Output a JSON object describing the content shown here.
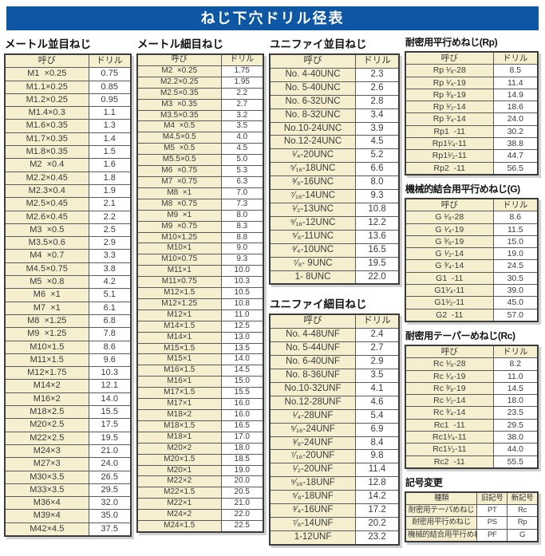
{
  "page_title": "ねじ下穴ドリル径表",
  "colors": {
    "header_bg": "#0d57a4",
    "header_text": "#ffffff",
    "cell_cream": "#f5efcf",
    "cell_white": "#ffffff",
    "table_border": "#3c3c3c"
  },
  "columns": [
    {
      "sections": [
        {
          "key": "metric_coarse",
          "title": "メートル並目ねじ",
          "headers": [
            "呼び",
            "ドリル"
          ],
          "rows": [
            [
              "M1  ×0.25",
              "0.75"
            ],
            [
              "M1.1×0.25",
              "0.85"
            ],
            [
              "M1.2×0.25",
              "0.95"
            ],
            [
              "M1.4×0.3",
              "1.1"
            ],
            [
              "M1.6×0.35",
              "1.3"
            ],
            [
              "M1.7×0.35",
              "1.4"
            ],
            [
              "M1.8×0.35",
              "1.5"
            ],
            [
              "M2  ×0.4",
              "1.6"
            ],
            [
              "M2.2×0.45",
              "1.8"
            ],
            [
              "M2.3×0.4",
              "1.9"
            ],
            [
              "M2.5×0.45",
              "2.1"
            ],
            [
              "M2.6×0.45",
              "2.2"
            ],
            [
              "M3  ×0.5",
              "2.5"
            ],
            [
              "M3.5×0.6",
              "2.9"
            ],
            [
              "M4  ×0.7",
              "3.3"
            ],
            [
              "M4.5×0.75",
              "3.8"
            ],
            [
              "M5  ×0.8",
              "4.2"
            ],
            [
              "M6  ×1",
              "5.1"
            ],
            [
              "M7  ×1",
              "6.1"
            ],
            [
              "M8  ×1.25",
              "6.8"
            ],
            [
              "M9  ×1.25",
              "7.8"
            ],
            [
              "M10×1.5",
              "8.6"
            ],
            [
              "M11×1.5",
              "9.6"
            ],
            [
              "M12×1.75",
              "10.3"
            ],
            [
              "M14×2",
              "12.1"
            ],
            [
              "M16×2",
              "14.0"
            ],
            [
              "M18×2.5",
              "15.5"
            ],
            [
              "M20×2.5",
              "17.5"
            ],
            [
              "M22×2.5",
              "19.5"
            ],
            [
              "M24×3",
              "21.0"
            ],
            [
              "M27×3",
              "24.0"
            ],
            [
              "M30×3.5",
              "26.5"
            ],
            [
              "M33×3.5",
              "29.5"
            ],
            [
              "M36×4",
              "32.0"
            ],
            [
              "M39×4",
              "35.0"
            ],
            [
              "M42×4.5",
              "37.5"
            ]
          ]
        }
      ]
    },
    {
      "sections": [
        {
          "key": "metric_fine",
          "title": "メートル細目ねじ",
          "headers": [
            "呼び",
            "ドリル"
          ],
          "rows": [
            [
              "M2  ×0.25",
              "1.75"
            ],
            [
              "M2.2×0.25",
              "1.95"
            ],
            [
              "M2.5×0.35",
              "2.2"
            ],
            [
              "M3  ×0.35",
              "2.7"
            ],
            [
              "M3.5×0.35",
              "3.2"
            ],
            [
              "M4  ×0.5",
              "3.5"
            ],
            [
              "M4.5×0.5",
              "4.0"
            ],
            [
              "M5  ×0.5",
              "4.5"
            ],
            [
              "M5.5×0.5",
              "5.0"
            ],
            [
              "M6  ×0.75",
              "5.3"
            ],
            [
              "M7  ×0.75",
              "6.3"
            ],
            [
              "M8  ×1",
              "7.0"
            ],
            [
              "M8  ×0.75",
              "7.3"
            ],
            [
              "M9  ×1",
              "8.0"
            ],
            [
              "M9  ×0.75",
              "8.3"
            ],
            [
              "M10×1.25",
              "8.8"
            ],
            [
              "M10×1",
              "9.0"
            ],
            [
              "M10×0.75",
              "9.3"
            ],
            [
              "M11×1",
              "10.0"
            ],
            [
              "M11×0.75",
              "10.3"
            ],
            [
              "M12×1.5",
              "10.5"
            ],
            [
              "M12×1.25",
              "10.8"
            ],
            [
              "M12×1",
              "11.0"
            ],
            [
              "M14×1.5",
              "12.5"
            ],
            [
              "M14×1",
              "13.0"
            ],
            [
              "M15×1.5",
              "13.5"
            ],
            [
              "M15×1",
              "14.0"
            ],
            [
              "M16×1.5",
              "14.5"
            ],
            [
              "M16×1",
              "15.0"
            ],
            [
              "M17×1.5",
              "15.5"
            ],
            [
              "M17×1",
              "16.0"
            ],
            [
              "M18×2",
              "16.0"
            ],
            [
              "M18×1.5",
              "16.5"
            ],
            [
              "M18×1",
              "17.0"
            ],
            [
              "M20×2",
              "18.0"
            ],
            [
              "M20×1.5",
              "18.5"
            ],
            [
              "M20×1",
              "19.0"
            ],
            [
              "M22×2",
              "20.0"
            ],
            [
              "M22×1.5",
              "20.5"
            ],
            [
              "M22×1",
              "21.0"
            ],
            [
              "M24×2",
              "22.0"
            ],
            [
              "M24×1.5",
              "22.5"
            ]
          ]
        }
      ]
    },
    {
      "sections": [
        {
          "key": "unified_coarse",
          "title": "ユニファイ並目ねじ",
          "headers": [
            "呼び",
            "ドリル"
          ],
          "rows": [
            [
              "No. 4-40UNC",
              "2.3"
            ],
            [
              "No. 5-40UNC",
              "2.6"
            ],
            [
              "No. 6-32UNC",
              "2.8"
            ],
            [
              "No. 8-32UNC",
              "3.4"
            ],
            [
              "No.10-24UNC",
              "3.9"
            ],
            [
              "No.12-24UNC",
              "4.5"
            ],
            [
              "¹⁄₄-20UNC",
              "5.2"
            ],
            [
              "⁵⁄₁₆-18UNC",
              "6.6"
            ],
            [
              "³⁄₈-16UNC",
              "8.0"
            ],
            [
              "⁷⁄₁₆-14UNC",
              "9.3"
            ],
            [
              "¹⁄₂-13UNC",
              "10.8"
            ],
            [
              "⁹⁄₁₆-12UNC",
              "12.2"
            ],
            [
              "⁵⁄₈-11UNC",
              "13.6"
            ],
            [
              "³⁄₄-10UNC",
              "16.5"
            ],
            [
              "⁷⁄₈- 9UNC",
              "19.5"
            ],
            [
              "1- 8UNC",
              "22.0"
            ]
          ]
        },
        {
          "key": "unified_fine",
          "title": "ユニファイ細目ねじ",
          "headers": [
            "呼び",
            "ドリル"
          ],
          "rows": [
            [
              "No. 4-48UNF",
              "2.4"
            ],
            [
              "No. 5-44UNF",
              "2.7"
            ],
            [
              "No. 6-40UNF",
              "2.9"
            ],
            [
              "No. 8-36UNF",
              "3.5"
            ],
            [
              "No.10-32UNF",
              "4.1"
            ],
            [
              "No.12-28UNF",
              "4.6"
            ],
            [
              "¹⁄₄-28UNF",
              "5.4"
            ],
            [
              "⁵⁄₁₆-24UNF",
              "6.9"
            ],
            [
              "³⁄₈-24UNF",
              "8.4"
            ],
            [
              "⁷⁄₁₆-20UNF",
              "9.8"
            ],
            [
              "¹⁄₂-20UNF",
              "11.4"
            ],
            [
              "⁹⁄₁₆-18UNF",
              "12.8"
            ],
            [
              "⁵⁄₈-18UNF",
              "14.2"
            ],
            [
              "³⁄₄-16UNF",
              "17.2"
            ],
            [
              "⁷⁄₈-14UNF",
              "20.2"
            ],
            [
              "1-12UNF",
              "23.2"
            ]
          ]
        }
      ]
    },
    {
      "sections": [
        {
          "key": "rp",
          "title": "耐密用平行めねじ(Rp)",
          "headers": [
            "呼び",
            "ドリル"
          ],
          "rows": [
            [
              "Rp ¹⁄₈-28",
              "8.5"
            ],
            [
              "Rp ¹⁄₄-19",
              "11.4"
            ],
            [
              "Rp ³⁄₈-19",
              "14.9"
            ],
            [
              "Rp ¹⁄₂-14",
              "18.6"
            ],
            [
              "Rp ³⁄₄-14",
              "24.0"
            ],
            [
              "Rp1  -11",
              "30.2"
            ],
            [
              "Rp1¹⁄₄-11",
              "38.8"
            ],
            [
              "Rp1¹⁄₂-11",
              "44.7"
            ],
            [
              "Rp2  -11",
              "56.5"
            ]
          ]
        },
        {
          "key": "g",
          "title": "機械的結合用平行めねじ(G)",
          "headers": [
            "呼び",
            "ドリル"
          ],
          "rows": [
            [
              "G ¹⁄₈-28",
              "8.6"
            ],
            [
              "G ¹⁄₄-19",
              "11.5"
            ],
            [
              "G ³⁄₈-19",
              "15.0"
            ],
            [
              "G ¹⁄₂-14",
              "19.0"
            ],
            [
              "G ³⁄₄-14",
              "24.5"
            ],
            [
              "G1  -11",
              "30.5"
            ],
            [
              "G1¹⁄₄-11",
              "39.0"
            ],
            [
              "G1¹⁄₂-11",
              "45.0"
            ],
            [
              "G2  -11",
              "57.0"
            ]
          ]
        },
        {
          "key": "rc",
          "title": "耐密用テーパーめねじ(Rc)",
          "headers": [
            "呼び",
            "ドリル"
          ],
          "rows": [
            [
              "Rc ¹⁄₈-28",
              "8.2"
            ],
            [
              "Rc ¹⁄₄-19",
              "11.0"
            ],
            [
              "Rc ³⁄₈-19",
              "14.5"
            ],
            [
              "Rc ¹⁄₂-14",
              "18.0"
            ],
            [
              "Rc ³⁄₄-14",
              "23.5"
            ],
            [
              "Rc1  -11",
              "29.5"
            ],
            [
              "Rc1¹⁄₄-11",
              "38.0"
            ],
            [
              "Rc1¹⁄₂-11",
              "44.0"
            ],
            [
              "Rc2  -11",
              "55.5"
            ]
          ]
        },
        {
          "key": "symbol_change",
          "title": "記号変更",
          "headers": [
            "種類",
            "旧記号",
            "新記号"
          ],
          "rows": [
            [
              "耐密用テーパめねじ",
              "PT",
              "Rc"
            ],
            [
              "耐密用平行めねじ",
              "PS",
              "Rp"
            ],
            [
              "機械的結合用平行めねじ",
              "PF",
              "G"
            ]
          ]
        }
      ]
    }
  ]
}
